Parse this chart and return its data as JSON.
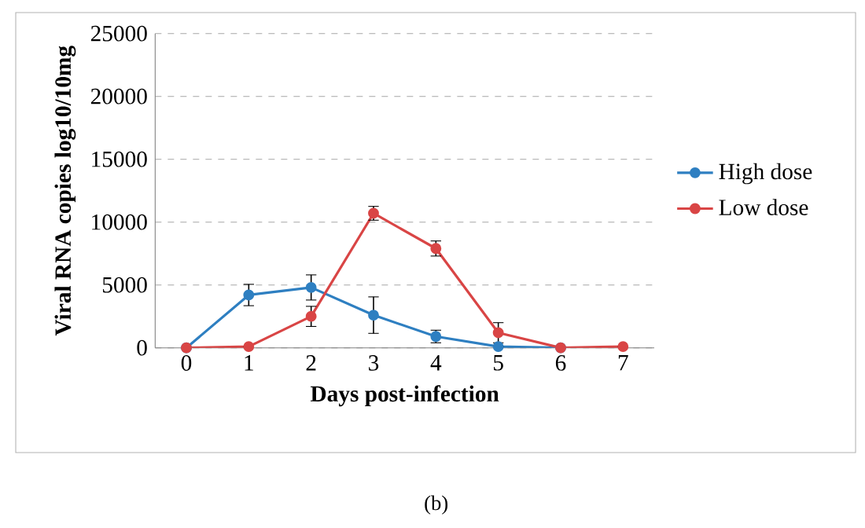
{
  "chart_data": {
    "type": "line",
    "xlabel": "Days post-infection",
    "ylabel": "Viral RNA copies log10/10mg",
    "categories": [
      "0",
      "1",
      "2",
      "3",
      "4",
      "5",
      "6",
      "7"
    ],
    "series": [
      {
        "name": "High dose",
        "color": "#2e7fc1",
        "values": [
          0,
          4200,
          4800,
          2600,
          900,
          100,
          0,
          null
        ],
        "errors": [
          null,
          850,
          1000,
          1450,
          500,
          null,
          null,
          null
        ]
      },
      {
        "name": "Low dose",
        "color": "#d94545",
        "values": [
          0,
          100,
          2500,
          10700,
          7900,
          1200,
          0,
          100
        ],
        "errors": [
          null,
          null,
          800,
          550,
          600,
          800,
          null,
          null
        ]
      }
    ],
    "ylim": [
      0,
      25000
    ],
    "yticks": [
      0,
      5000,
      10000,
      15000,
      20000,
      25000
    ],
    "grid": "y",
    "legend": "right",
    "marker": "circle",
    "line_style": "solid",
    "annotations": [
      "(b)"
    ]
  }
}
